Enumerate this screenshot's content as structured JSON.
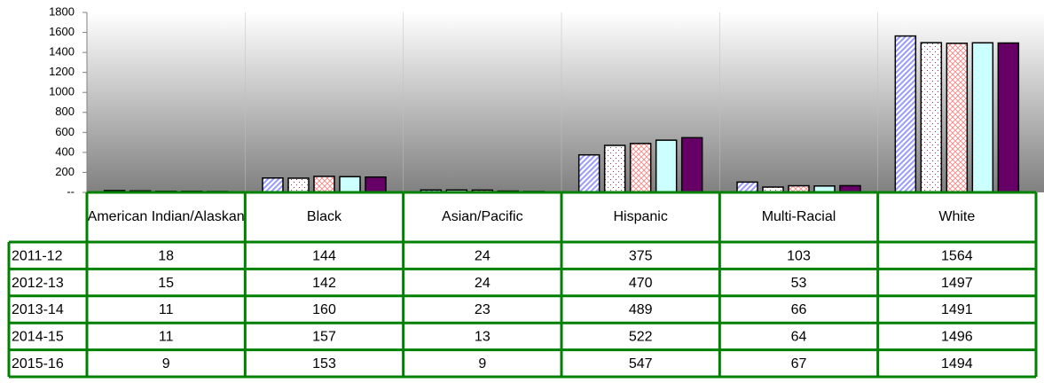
{
  "chart_data": {
    "type": "bar",
    "categories": [
      "American Indian/Alaskan",
      "Black",
      "Asian/Pacific",
      "Hispanic",
      "Multi-Racial",
      "White"
    ],
    "series": [
      {
        "name": "2011-12",
        "color": "#9999ff",
        "pattern": "diagonal",
        "values": [
          18,
          144,
          24,
          375,
          103,
          1564
        ]
      },
      {
        "name": "2012-13",
        "color": "#993366",
        "pattern": "dots",
        "values": [
          15,
          142,
          24,
          470,
          53,
          1497
        ]
      },
      {
        "name": "2013-14",
        "color": "#ff8080",
        "pattern": "crosshatch",
        "values": [
          11,
          160,
          23,
          489,
          66,
          1491
        ]
      },
      {
        "name": "2014-15",
        "color": "#ccffff",
        "pattern": "solid",
        "values": [
          11,
          157,
          13,
          522,
          64,
          1496
        ]
      },
      {
        "name": "2015-16",
        "color": "#660066",
        "pattern": "solid",
        "values": [
          9,
          153,
          9,
          547,
          67,
          1494
        ]
      }
    ],
    "ylim": [
      0,
      1800
    ],
    "yticks": [
      {
        "value": 0,
        "label": "--"
      },
      200,
      400,
      600,
      800,
      1000,
      1200,
      1400,
      1600,
      1800
    ],
    "grid": true,
    "data_table": true
  }
}
